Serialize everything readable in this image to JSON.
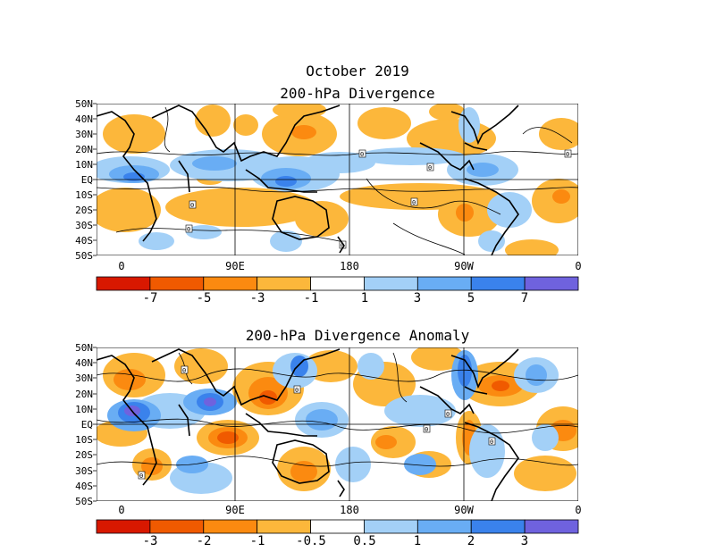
{
  "header": {
    "month_title": "October 2019"
  },
  "panels": [
    {
      "title": "200-hPa Divergence",
      "lat_labels": [
        "50N",
        "40N",
        "30N",
        "20N",
        "10N",
        "EQ",
        "10S",
        "20S",
        "30S",
        "40S",
        "50S"
      ],
      "lon_labels": [
        "0",
        "90E",
        "180",
        "90W",
        "0"
      ],
      "colorbar": {
        "colors": [
          "#d81800",
          "#f05a00",
          "#fb8a10",
          "#fcb73b",
          "#ffffff",
          "#a3d0f7",
          "#69adf4",
          "#3a82ec",
          "#6f62de"
        ],
        "labels": [
          "-7",
          "-5",
          "-3",
          "-1",
          "1",
          "3",
          "5",
          "7"
        ]
      }
    },
    {
      "title": "200-hPa Divergence Anomaly",
      "lat_labels": [
        "50N",
        "40N",
        "30N",
        "20N",
        "10N",
        "EQ",
        "10S",
        "20S",
        "30S",
        "40S",
        "50S"
      ],
      "lon_labels": [
        "0",
        "90E",
        "180",
        "90W",
        "0"
      ],
      "colorbar": {
        "colors": [
          "#d81800",
          "#f05a00",
          "#fb8a10",
          "#fcb73b",
          "#ffffff",
          "#a3d0f7",
          "#69adf4",
          "#3a82ec",
          "#6f62de"
        ],
        "labels": [
          "-3",
          "-2",
          "-1",
          "-0.5",
          "0.5",
          "1",
          "2",
          "3"
        ]
      }
    }
  ]
}
